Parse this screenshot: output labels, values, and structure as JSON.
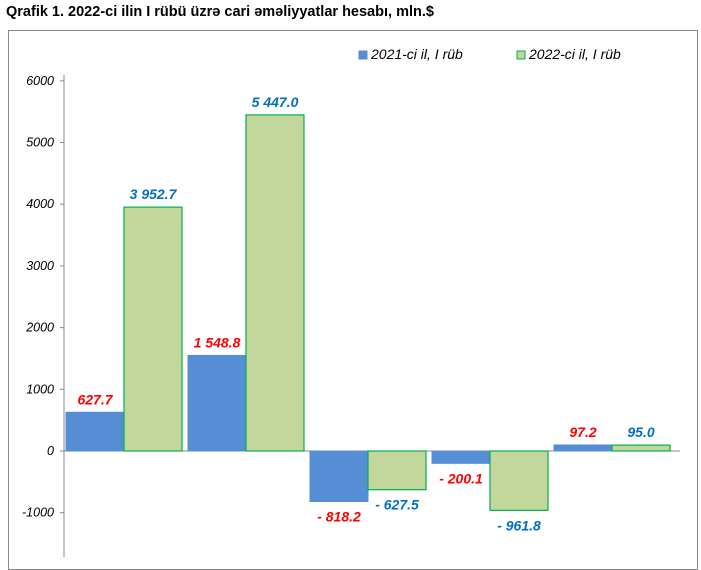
{
  "title": "Qrafik 1. 2022-ci ilin I rübü üzrə cari əməliyyatlar hesabı, mln.$",
  "colors": {
    "series_2021": "#558ed5",
    "series_2022": "#c3d69b",
    "series_2022_border": "#00b050",
    "label_2021": "#ff0000",
    "label_2022": "#0070c0"
  },
  "chart_data": {
    "type": "bar",
    "title": "Qrafik 1. 2022-ci ilin I rübü üzrə cari əməliyyatlar hesabı, mln.$",
    "categories": [
      "",
      "",
      "",
      "",
      ""
    ],
    "series": [
      {
        "name": "2021-ci il, I rüb",
        "values": [
          627.7,
          1548.8,
          -818.2,
          -200.1,
          97.2
        ],
        "labels": [
          "627.7",
          "1 548.8",
          "- 818.2",
          "- 200.1",
          "97.2"
        ]
      },
      {
        "name": "2022-ci il, I rüb",
        "values": [
          3952.7,
          5447.0,
          -627.5,
          -961.8,
          95.0
        ],
        "labels": [
          "3 952.7",
          "5 447.0",
          "- 627.5",
          "- 961.8",
          "95.0"
        ]
      }
    ],
    "ylim": [
      -1000,
      6000
    ],
    "yticks": [
      "6000",
      "5000",
      "4000",
      "3000",
      "2000",
      "1000",
      "0",
      "-1000"
    ],
    "legend": "top-right",
    "grid": false
  }
}
